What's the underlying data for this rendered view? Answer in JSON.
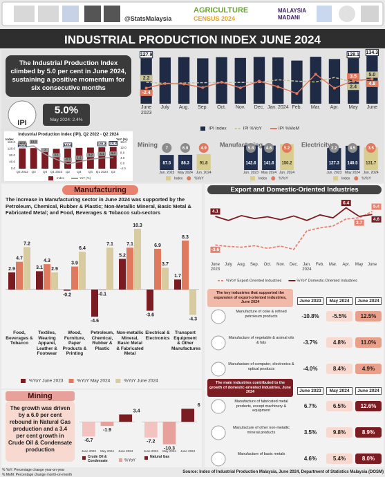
{
  "header": {
    "handle": "@StatsMalaysia",
    "census": [
      "AGRICULTURE",
      "CENSUS 2024"
    ],
    "madani": [
      "MALAYSIA",
      "MADANI"
    ]
  },
  "title": "INDUSTRIAL PRODUCTION INDEX JUNE 2024",
  "summary": "The Industrial Production Index climbed by 5.0 per cent in June 2024, sustaining a positive momentum for six consecutive months",
  "ipi": {
    "label": "IPI",
    "value": "5.0%",
    "previous": "May 2024: 2.4%"
  },
  "chart_data": [
    {
      "type": "combo",
      "categories": [
        "June 2023",
        "July",
        "Aug.",
        "Sep.",
        "Oct.",
        "Nov.",
        "Dec.",
        "Jan. 2024",
        "Feb.",
        "Mar.",
        "Apr.",
        "May",
        "June"
      ],
      "ylim": [
        0,
        140
      ],
      "y2lim": [
        -15,
        25
      ],
      "series": [
        {
          "name": "IPI Index",
          "type": "bar",
          "color": "#1f2a44",
          "values": [
            127.9,
            129.8,
            131.0,
            127.6,
            130.9,
            128.7,
            131.5,
            130.1,
            121.3,
            131.9,
            125.7,
            128.1,
            134.3
          ],
          "value_labels": [
            "127.9",
            null,
            null,
            null,
            null,
            null,
            null,
            null,
            null,
            null,
            null,
            "128.1",
            "134.3"
          ]
        },
        {
          "name": "IPI %YoY",
          "type": "line",
          "axis": "y2",
          "dash": true,
          "color": "#c9c398",
          "values": [
            2.2,
            1.3,
            1.6,
            1.9,
            2.0,
            2.1,
            2.0,
            4.2,
            3.1,
            2.4,
            6.1,
            2.4,
            5.0
          ],
          "value_labels": [
            "2.2",
            null,
            null,
            null,
            null,
            null,
            null,
            null,
            null,
            null,
            null,
            "2.4",
            "5.0"
          ]
        },
        {
          "name": "IPI %MoM",
          "type": "line",
          "axis": "y2",
          "marker": "circle",
          "color": "#e07a5f",
          "values": [
            -2.4,
            1.2,
            0.8,
            -2.0,
            2.3,
            -2.2,
            3.1,
            -1.4,
            -6.8,
            8.7,
            -2.5,
            3.5,
            4.8
          ],
          "value_labels": [
            "-2.4",
            null,
            null,
            null,
            null,
            null,
            null,
            null,
            null,
            null,
            null,
            "3.5",
            "4.8"
          ]
        }
      ]
    },
    {
      "type": "combo",
      "title": "Industrial Production Index (IPI), Q2 2022 - Q2 2024",
      "y_label": "Index",
      "y2_label": "YoY (%)",
      "categories": [
        "Q2 2022",
        "Q3",
        "Q4",
        "Q1 2023",
        "Q2",
        "Q3",
        "Q4",
        "Q1 2024",
        "Q2"
      ],
      "ylim": [
        0,
        160
      ],
      "yticks": [
        {
          "value": 0,
          "label": "0.0"
        },
        {
          "value": 40,
          "label": "40.0"
        },
        {
          "value": 80,
          "label": "80.0"
        },
        {
          "value": 120,
          "label": "120.0"
        },
        {
          "value": 160,
          "label": "160.0"
        }
      ],
      "y2lim": [
        -4,
        16
      ],
      "y2ticks": [
        {
          "value": -4,
          "label": "-4.0"
        },
        {
          "value": 0,
          "label": "0.0"
        },
        {
          "value": 4,
          "label": "4.0"
        },
        {
          "value": 8,
          "label": "8.0"
        },
        {
          "value": 12,
          "label": "12.0"
        },
        {
          "value": 16,
          "label": "16.0"
        }
      ],
      "series": [
        {
          "name": "Index",
          "type": "bar",
          "color": "#7a1c22",
          "values": [
            123.6,
            125.5,
            124.6,
            121.3,
            123.2,
            127.0,
            128.6,
            130.2,
            132.8
          ],
          "value_labels": [
            "123.6",
            null,
            null,
            null,
            "123.2",
            null,
            null,
            "130.2",
            "132.8"
          ]
        },
        {
          "name": "YoY (%)",
          "type": "line",
          "axis": "y2",
          "color": "#9a9a9a",
          "values": [
            12.5,
            13.3,
            7.0,
            3.1,
            -0.3,
            1.2,
            3.2,
            4.1,
            4.4
          ]
        }
      ]
    },
    {
      "type": "badge-bar",
      "title": "Mining",
      "categories": [
        "Jun. 2023",
        "May 2024",
        "Jun. 2024"
      ],
      "ylim": [
        0,
        160
      ],
      "series": [
        {
          "name": "Index",
          "colors": [
            "#22304f",
            "#22304f",
            "#d8cd8f"
          ],
          "values": [
            87.5,
            88.3,
            91.8
          ]
        },
        {
          "name": "%YoY",
          "colors": [
            "#8c8c8c",
            "#8c8c8c",
            "#e07a5f"
          ],
          "values": [
            7.0,
            6.9,
            4.9
          ]
        }
      ]
    },
    {
      "type": "badge-bar",
      "title": "Manufacturing",
      "categories": [
        "Jun. 2023",
        "May 2024",
        "Jun. 2024"
      ],
      "ylim": [
        0,
        160
      ],
      "series": [
        {
          "name": "Index",
          "colors": [
            "#22304f",
            "#22304f",
            "#d8cd8f"
          ],
          "values": [
            142.6,
            141.6,
            150.2
          ]
        },
        {
          "name": "%YoY",
          "colors": [
            "#8c8c8c",
            "#8c8c8c",
            "#e07a5f"
          ],
          "values": [
            5.8,
            4.6,
            5.2
          ]
        }
      ]
    },
    {
      "type": "badge-bar",
      "title": "Electricity",
      "categories": [
        "Jun. 2023",
        "May 2024",
        "Jun. 2024"
      ],
      "ylim": [
        0,
        160
      ],
      "series": [
        {
          "name": "Index",
          "colors": [
            "#22304f",
            "#22304f",
            "#d8cd8f"
          ],
          "values": [
            127.3,
            140.5,
            131.7
          ]
        },
        {
          "name": "%YoY",
          "colors": [
            "#8c8c8c",
            "#8c8c8c",
            "#e07a5f"
          ],
          "values": [
            2.2,
            4.5,
            3.5
          ]
        }
      ]
    },
    {
      "type": "grouped-bar",
      "ylim": [
        -6,
        11
      ],
      "categories": [
        "Food, Beverages & Tobacco",
        "Textiles, Wearing Apparel, Leather & Footwear",
        "Wood, Furniture, Paper Products & Printing",
        "Petroleum, Chemical, Rubber & Plastic",
        "Non-metallic Mineral, Basic Metal & Fabricated Metal",
        "Electrical & Electronics",
        "Transport Equipment & Other Manufactures"
      ],
      "series": [
        {
          "name": "%YoY June 2023",
          "color": "#7a1c22",
          "values": [
            2.9,
            3.1,
            -0.2,
            -4.6,
            5.2,
            -3.6,
            1.7
          ]
        },
        {
          "name": "%YoY May 2024",
          "color": "#e07a5f",
          "values": [
            4.7,
            4.3,
            3.9,
            -0.1,
            7.1,
            6.9,
            8.3
          ]
        },
        {
          "name": "%YoY June 2024",
          "color": "#d9cba0",
          "values": [
            7.2,
            2.9,
            6.4,
            7.1,
            10.3,
            3.7,
            -4.3
          ]
        }
      ]
    },
    {
      "type": "bar",
      "title": "Crude Oil & Condensate",
      "categories": [
        "June 2023",
        "May 2024",
        "June 2024"
      ],
      "ylim": [
        -12,
        8
      ],
      "series": [
        {
          "name": "%YoY",
          "colors": [
            "#f3c4bf",
            "#e8a09a",
            "#7a1c22"
          ],
          "values": [
            -6.7,
            -1.9,
            3.4
          ]
        }
      ]
    },
    {
      "type": "bar",
      "title": "Natural Gas",
      "categories": [
        "June 2023",
        "May 2024",
        "June 2024"
      ],
      "ylim": [
        -12,
        8
      ],
      "series": [
        {
          "colors": [
            "#f3c4bf",
            "#e8a09a",
            "#7a1c22"
          ],
          "values": [
            -7.2,
            -10.3,
            6.0
          ]
        }
      ]
    },
    {
      "type": "line",
      "categories": [
        "June 2023",
        "July",
        "Aug.",
        "Sep.",
        "Oct.",
        "Nov.",
        "Dec.",
        "Jan. 2024",
        "Feb.",
        "Mar.",
        "Apr.",
        "May",
        "June"
      ],
      "ylim": [
        -8,
        8
      ],
      "series": [
        {
          "name": "%YoY Export-Oriented Industries",
          "dash": true,
          "color": "#e8826e",
          "values": [
            -3.6,
            -4.0,
            -4.2,
            -3.8,
            -4.5,
            -3.9,
            -4.8,
            0.2,
            1.0,
            1.5,
            3.4,
            3.7,
            5.4
          ],
          "value_labels": [
            "-3.6",
            null,
            null,
            null,
            null,
            null,
            null,
            null,
            null,
            null,
            null,
            "3.7",
            "5.4"
          ]
        },
        {
          "name": "%YoY Domestic-Oriented Industries",
          "color": "#7a1c22",
          "values": [
            4.1,
            3.0,
            4.3,
            3.5,
            4.0,
            3.2,
            4.2,
            3.0,
            4.5,
            3.7,
            6.4,
            4.1,
            4.6
          ],
          "value_labels": [
            "4.1",
            null,
            null,
            null,
            null,
            null,
            null,
            null,
            null,
            null,
            "6.4",
            null,
            "4.6"
          ]
        }
      ]
    }
  ],
  "manufacturing": {
    "title": "Manufacturing",
    "text": "The increase in Manufacturing sector in June 2024 was supported by the Petroleum, Chemical, Rubber & Plastic; Non-Metallic Mineral, Basic Metal & Fabricated Metal; and Food, Beverages & Tobacco sub-sectors"
  },
  "mining": {
    "title": "Mining",
    "text": "The growth was driven by a 6.0 per cent rebound in Natural Gas production and a 3.4 per cent growth in Crude Oil & Condensate production"
  },
  "trade": {
    "title": "Export and Domestic-Oriented Industries"
  },
  "tables": [
    {
      "title": "The key industries that supported the expansion of export-oriented industries, June 2024",
      "columns": [
        "June 2023",
        "May 2024",
        "June 2024"
      ],
      "rows": [
        {
          "label": "Manufacture of coke & refined petroleum products",
          "values": [
            "-10.8%",
            "-5.5%",
            "12.5%"
          ]
        },
        {
          "label": "Manufacture of vegetable & animal oils & fats",
          "values": [
            "-3.7%",
            "4.8%",
            "11.0%"
          ]
        },
        {
          "label": "Manufacture of computer, electronics & optical products",
          "values": [
            "-4.0%",
            "8.4%",
            "4.9%"
          ]
        }
      ]
    },
    {
      "title": "The main industries contributed to the growth of domestic-oriented industries, June 2024",
      "columns": [
        "June 2023",
        "May 2024",
        "June 2024"
      ],
      "rows": [
        {
          "label": "Manufacture of fabricated metal products, except machinery & equipment",
          "values": [
            "6.7%",
            "6.5%",
            "12.6%"
          ]
        },
        {
          "label": "Manufacture of other non-metallic mineral products",
          "values": [
            "3.5%",
            "9.8%",
            "8.9%"
          ]
        },
        {
          "label": "Manufacture of basic metals",
          "values": [
            "4.6%",
            "5.4%",
            "8.0%"
          ]
        }
      ]
    }
  ],
  "notes": [
    "% YoY: Percentage change year-on-year",
    "% MoM: Percentage change month-on-month"
  ],
  "source": "Source: Index of Industrial Production Malaysia, June 2024, Department of Statistics Malaysia (DOSM)"
}
